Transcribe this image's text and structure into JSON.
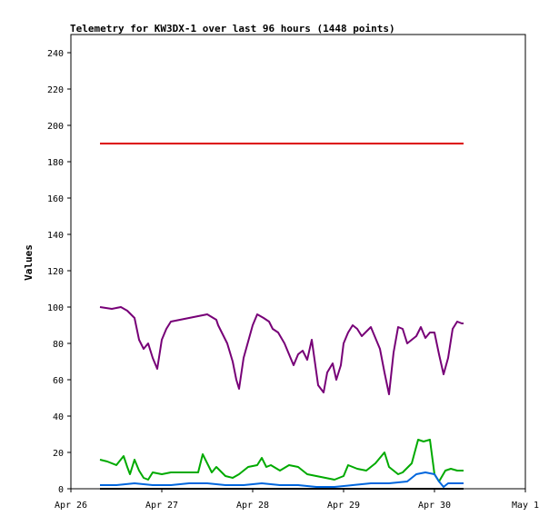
{
  "chart_data": {
    "type": "line",
    "title": "Telemetry for KW3DX-1 over last 96 hours (1448 points)",
    "xlabel": "",
    "ylabel": "Values",
    "x_ticks": [
      "Apr 26",
      "Apr 27",
      "Apr 28",
      "Apr 29",
      "Apr 30",
      "May 1"
    ],
    "xlim": [
      0,
      5
    ],
    "ylim": [
      0,
      250
    ],
    "y_ticks": [
      0,
      20,
      40,
      60,
      80,
      100,
      120,
      140,
      160,
      180,
      200,
      220,
      240
    ],
    "grid": false,
    "series": [
      {
        "color": "#dd0000",
        "x": [
          0.32,
          4.32
        ],
        "y": [
          190,
          190
        ]
      },
      {
        "color": "#770077",
        "x": [
          0.32,
          0.45,
          0.55,
          0.62,
          0.7,
          0.75,
          0.8,
          0.85,
          0.9,
          0.95,
          1.0,
          1.05,
          1.1,
          1.2,
          1.3,
          1.4,
          1.5,
          1.6,
          1.62,
          1.68,
          1.72,
          1.78,
          1.82,
          1.85,
          1.9,
          2.0,
          2.05,
          2.12,
          2.18,
          2.22,
          2.28,
          2.35,
          2.45,
          2.5,
          2.55,
          2.6,
          2.65,
          2.72,
          2.78,
          2.82,
          2.88,
          2.92,
          2.97,
          3.0,
          3.05,
          3.1,
          3.15,
          3.2,
          3.3,
          3.4,
          3.45,
          3.5,
          3.55,
          3.6,
          3.65,
          3.7,
          3.8,
          3.85,
          3.9,
          3.95,
          4.0,
          4.05,
          4.1,
          4.15,
          4.2,
          4.25,
          4.3,
          4.32
        ],
        "y": [
          100,
          99,
          100,
          98,
          94,
          82,
          77,
          80,
          72,
          66,
          82,
          88,
          92,
          93,
          94,
          95,
          96,
          93,
          90,
          84,
          80,
          70,
          60,
          55,
          72,
          90,
          96,
          94,
          92,
          88,
          86,
          80,
          68,
          74,
          76,
          71,
          82,
          57,
          53,
          64,
          69,
          60,
          68,
          80,
          86,
          90,
          88,
          84,
          89,
          77,
          64,
          52,
          75,
          89,
          88,
          80,
          84,
          89,
          83,
          86,
          86,
          74,
          63,
          72,
          88,
          92,
          91,
          91
        ]
      },
      {
        "color": "#00aa00",
        "x": [
          0.32,
          0.4,
          0.5,
          0.58,
          0.62,
          0.65,
          0.7,
          0.75,
          0.8,
          0.85,
          0.9,
          1.0,
          1.1,
          1.2,
          1.3,
          1.4,
          1.45,
          1.55,
          1.6,
          1.7,
          1.78,
          1.85,
          1.95,
          2.05,
          2.1,
          2.15,
          2.2,
          2.3,
          2.4,
          2.5,
          2.6,
          2.7,
          2.8,
          2.9,
          3.0,
          3.05,
          3.15,
          3.25,
          3.35,
          3.45,
          3.5,
          3.6,
          3.65,
          3.75,
          3.82,
          3.88,
          3.95,
          4.0,
          4.05,
          4.12,
          4.18,
          4.25,
          4.32
        ],
        "y": [
          16,
          15,
          13,
          18,
          12,
          8,
          16,
          10,
          6,
          5,
          9,
          8,
          9,
          9,
          9,
          9,
          19,
          9,
          12,
          7,
          6,
          8,
          12,
          13,
          17,
          12,
          13,
          10,
          13,
          12,
          8,
          7,
          6,
          5,
          7,
          13,
          11,
          10,
          14,
          20,
          12,
          8,
          9,
          14,
          27,
          26,
          27,
          8,
          4,
          10,
          11,
          10,
          10
        ]
      },
      {
        "color": "#0066dd",
        "x": [
          0.32,
          0.5,
          0.7,
          0.9,
          1.1,
          1.3,
          1.5,
          1.7,
          1.9,
          2.1,
          2.3,
          2.5,
          2.7,
          2.9,
          3.1,
          3.3,
          3.5,
          3.7,
          3.8,
          3.9,
          4.0,
          4.05,
          4.1,
          4.15,
          4.2,
          4.32
        ],
        "y": [
          2,
          2,
          3,
          2,
          2,
          3,
          3,
          2,
          2,
          3,
          2,
          2,
          1,
          1,
          2,
          3,
          3,
          4,
          8,
          9,
          8,
          4,
          1,
          3,
          3,
          3
        ]
      },
      {
        "color": "#000000",
        "x": [
          0.32,
          4.32
        ],
        "y": [
          0,
          0
        ]
      }
    ]
  }
}
